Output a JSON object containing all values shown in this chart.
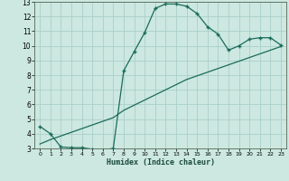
{
  "xlabel": "Humidex (Indice chaleur)",
  "xlim": [
    -0.5,
    23.5
  ],
  "ylim": [
    3,
    13
  ],
  "xticks": [
    0,
    1,
    2,
    3,
    4,
    5,
    6,
    7,
    8,
    9,
    10,
    11,
    12,
    13,
    14,
    15,
    16,
    17,
    18,
    19,
    20,
    21,
    22,
    23
  ],
  "yticks": [
    3,
    4,
    5,
    6,
    7,
    8,
    9,
    10,
    11,
    12,
    13
  ],
  "bg_color": "#cce8e0",
  "grid_color": "#aad0c8",
  "line_color": "#1a6b5a",
  "line1_x": [
    0,
    1,
    2,
    3,
    4,
    5,
    6,
    7,
    8,
    9,
    10,
    11,
    12,
    13,
    14,
    15,
    16,
    17,
    18,
    19,
    20,
    21,
    22,
    23
  ],
  "line1_y": [
    4.5,
    4.0,
    3.1,
    3.05,
    3.05,
    2.95,
    2.9,
    3.0,
    8.3,
    9.6,
    10.9,
    12.55,
    12.85,
    12.85,
    12.7,
    12.2,
    11.3,
    10.8,
    9.7,
    10.0,
    10.45,
    10.55,
    10.55,
    10.05
  ],
  "line2_x": [
    0,
    1,
    2,
    3,
    4,
    5,
    6,
    7,
    8,
    9,
    10,
    11,
    12,
    13,
    14,
    15,
    16,
    17,
    18,
    19,
    20,
    21,
    22,
    23
  ],
  "line2_y": [
    3.3,
    3.6,
    3.85,
    4.1,
    4.35,
    4.6,
    4.85,
    5.1,
    5.6,
    5.95,
    6.3,
    6.65,
    7.0,
    7.35,
    7.7,
    7.95,
    8.2,
    8.45,
    8.7,
    8.95,
    9.2,
    9.45,
    9.7,
    9.95
  ]
}
